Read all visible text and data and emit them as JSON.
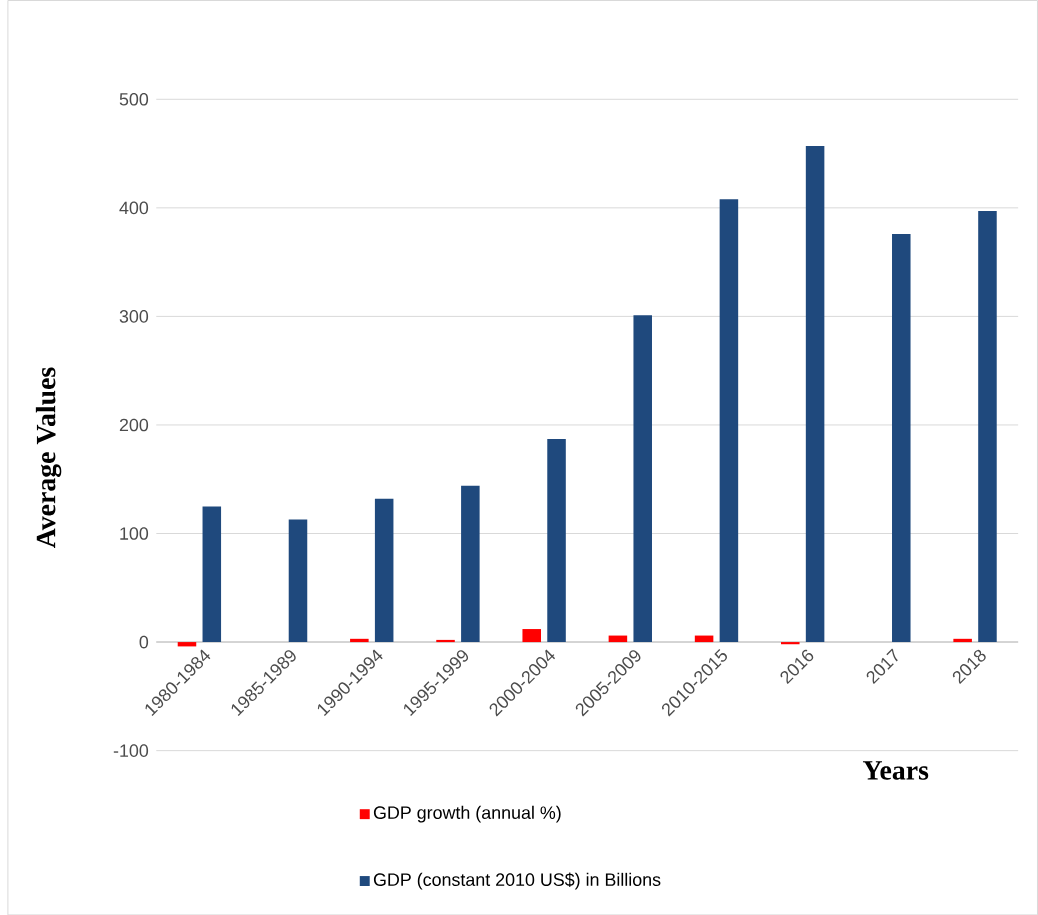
{
  "chart_data": {
    "type": "bar",
    "ylabel": "Average Values",
    "xlabel": "Years",
    "categories": [
      "1980-1984",
      "1985-1989",
      "1990-1994",
      "1995-1999",
      "2000-2004",
      "2005-2009",
      "2010-2015",
      "2016",
      "2017",
      "2018"
    ],
    "series": [
      {
        "name": "GDP growth (annual %)",
        "color": "#ff0000",
        "values": [
          -4,
          null,
          3,
          2,
          12,
          6,
          6,
          -2,
          null,
          3
        ]
      },
      {
        "name": "GDP (constant 2010 US$) in Billions",
        "color": "#1f497d",
        "values": [
          125,
          113,
          132,
          144,
          187,
          301,
          408,
          457,
          376,
          397
        ]
      }
    ],
    "ylim": [
      -100,
      500
    ],
    "yticks": [
      -100,
      0,
      100,
      200,
      300,
      400,
      500
    ],
    "grid": "y",
    "legend": "bottom"
  }
}
